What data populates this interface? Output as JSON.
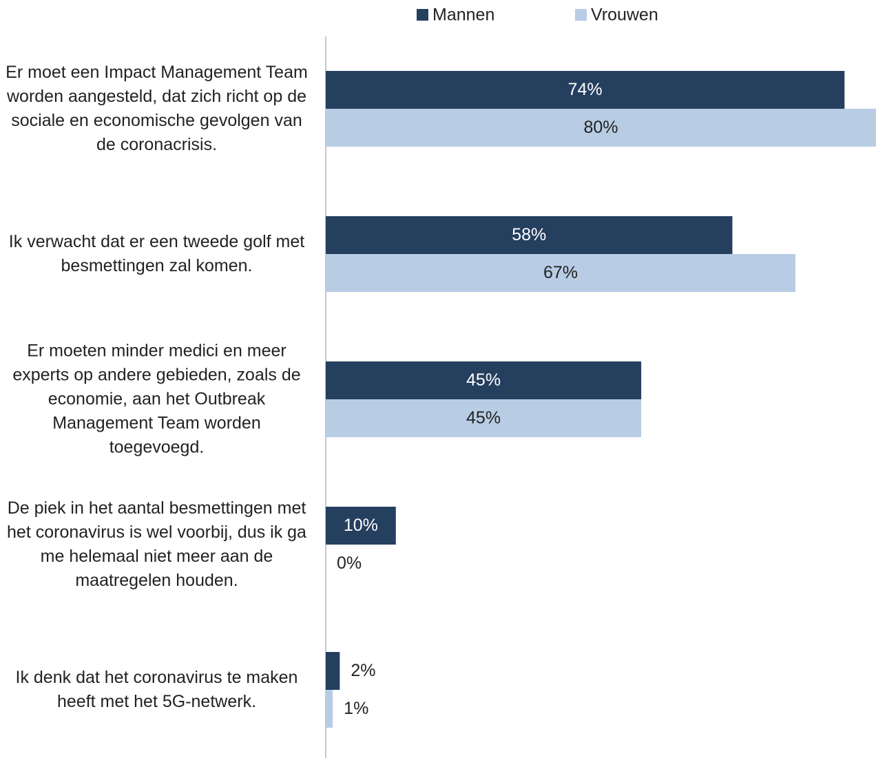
{
  "chart_data": {
    "type": "bar",
    "orientation": "horizontal",
    "categories": [
      "Er moet een Impact Management Team worden aangesteld, dat zich richt op de sociale en economische gevolgen van de coronacrisis.",
      "Ik verwacht dat er een tweede golf met besmettingen zal komen.",
      "Er moeten minder medici en meer experts op andere gebieden, zoals de economie, aan het Outbreak Management Team worden toegevoegd.",
      "De piek in het aantal besmettingen met het coronavirus is wel voorbij, dus ik ga me helemaal niet meer aan de maatregelen houden.",
      "Ik denk dat het coronavirus te maken heeft met het 5G-netwerk."
    ],
    "series": [
      {
        "name": "Mannen",
        "color": "#253f5f",
        "values": [
          74,
          58,
          45,
          10,
          2
        ],
        "value_labels": [
          "74%",
          "58%",
          "45%",
          "10%",
          "2%"
        ]
      },
      {
        "name": "Vrouwen",
        "color": "#b8cce4",
        "values": [
          80,
          67,
          45,
          0,
          1
        ],
        "value_labels": [
          "80%",
          "67%",
          "45%",
          "0%",
          "1%"
        ]
      }
    ],
    "xlim": [
      0,
      100
    ],
    "legend": "top"
  }
}
